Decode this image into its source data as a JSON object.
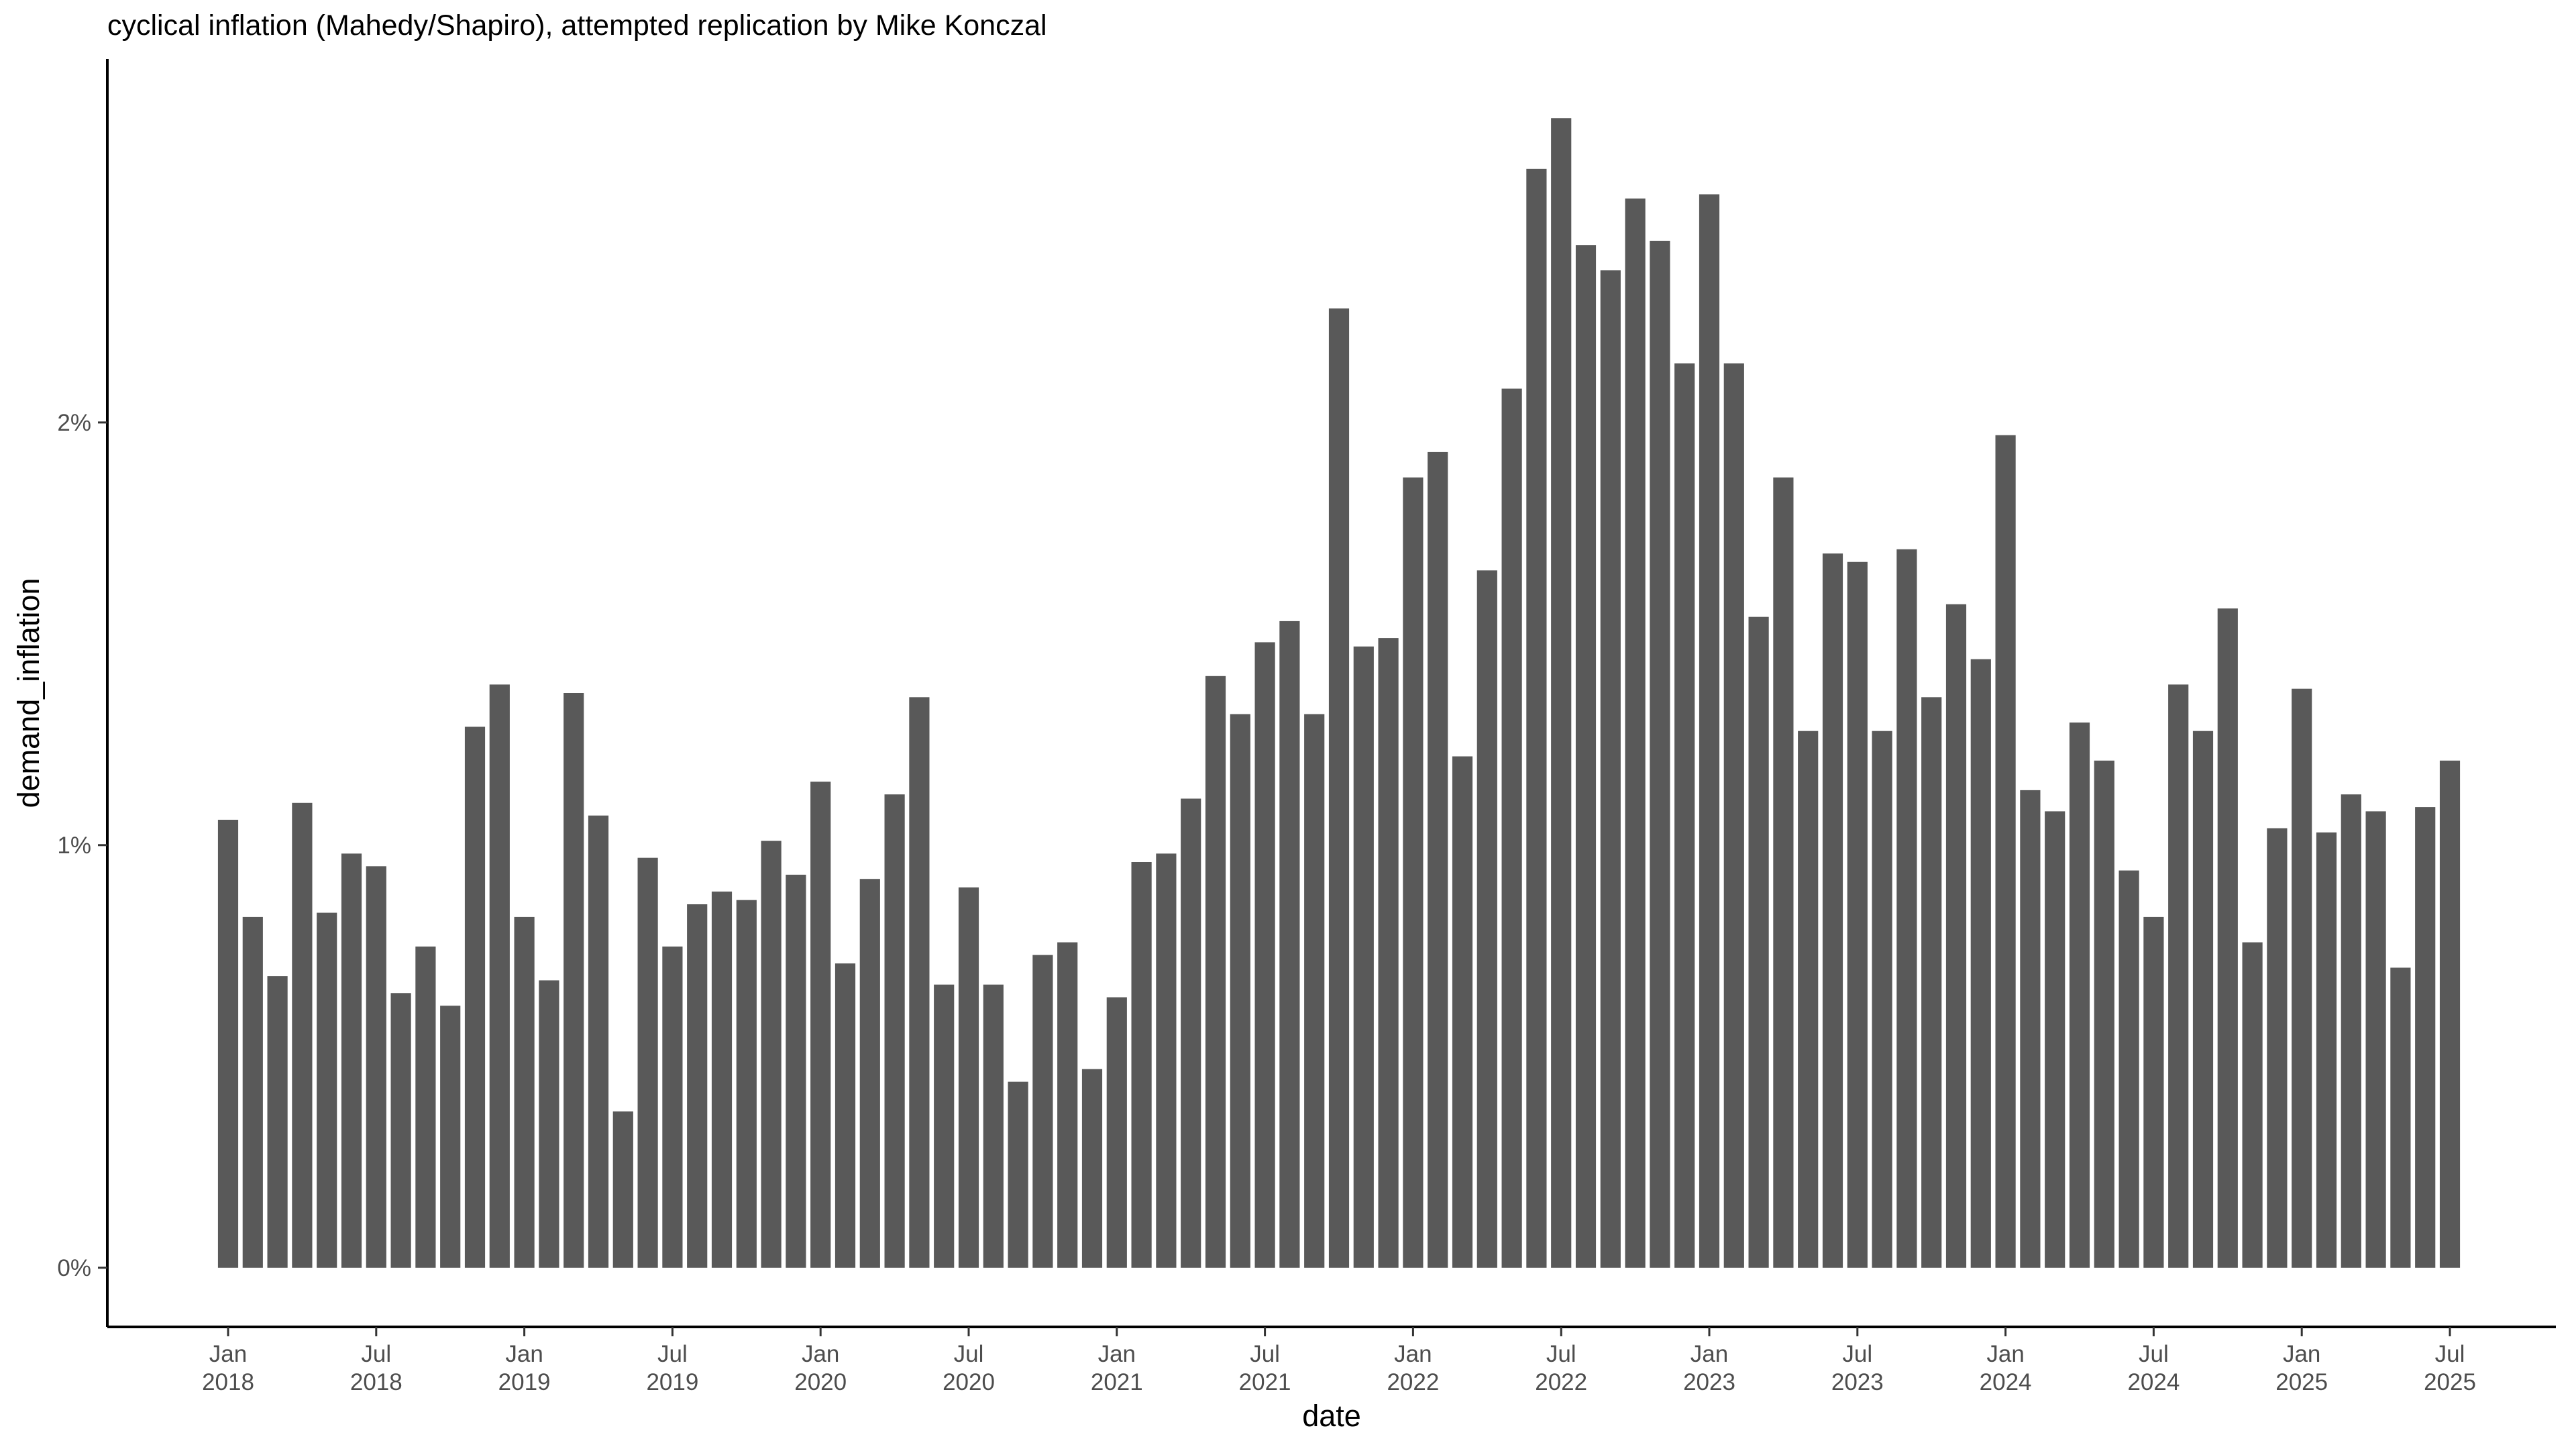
{
  "chart_data": {
    "type": "bar",
    "title": "cyclical inflation (Mahedy/Shapiro), attempted replication by Mike Konczal",
    "xlabel": "date",
    "ylabel": "demand_inflation",
    "bar_color": "#595959",
    "axis_color": "#000000",
    "tick_label_color": "#4d4d4d",
    "grid": false,
    "legend": "none",
    "ylim": [
      -0.14,
      2.86
    ],
    "y_ticks": [
      {
        "value": 0,
        "label": "0%"
      },
      {
        "value": 1,
        "label": "1%"
      },
      {
        "value": 2,
        "label": "2%"
      }
    ],
    "x_ticks": [
      {
        "date": "2018-01",
        "line1": "Jan",
        "line2": "2018"
      },
      {
        "date": "2018-07",
        "line1": "Jul",
        "line2": "2018"
      },
      {
        "date": "2019-01",
        "line1": "Jan",
        "line2": "2019"
      },
      {
        "date": "2019-07",
        "line1": "Jul",
        "line2": "2019"
      },
      {
        "date": "2020-01",
        "line1": "Jan",
        "line2": "2020"
      },
      {
        "date": "2020-07",
        "line1": "Jul",
        "line2": "2020"
      },
      {
        "date": "2021-01",
        "line1": "Jan",
        "line2": "2021"
      },
      {
        "date": "2021-07",
        "line1": "Jul",
        "line2": "2021"
      },
      {
        "date": "2022-01",
        "line1": "Jan",
        "line2": "2022"
      },
      {
        "date": "2022-07",
        "line1": "Jul",
        "line2": "2022"
      },
      {
        "date": "2023-01",
        "line1": "Jan",
        "line2": "2023"
      },
      {
        "date": "2023-07",
        "line1": "Jul",
        "line2": "2023"
      },
      {
        "date": "2024-01",
        "line1": "Jan",
        "line2": "2024"
      },
      {
        "date": "2024-07",
        "line1": "Jul",
        "line2": "2024"
      },
      {
        "date": "2025-01",
        "line1": "Jan",
        "line2": "2025"
      },
      {
        "date": "2025-07",
        "line1": "Jul",
        "line2": "2025"
      }
    ],
    "x": [
      "2018-01",
      "2018-02",
      "2018-03",
      "2018-04",
      "2018-05",
      "2018-06",
      "2018-07",
      "2018-08",
      "2018-09",
      "2018-10",
      "2018-11",
      "2018-12",
      "2019-01",
      "2019-02",
      "2019-03",
      "2019-04",
      "2019-05",
      "2019-06",
      "2019-07",
      "2019-08",
      "2019-09",
      "2019-10",
      "2019-11",
      "2019-12",
      "2020-01",
      "2020-02",
      "2020-03",
      "2020-04",
      "2020-05",
      "2020-06",
      "2020-07",
      "2020-08",
      "2020-09",
      "2020-10",
      "2020-11",
      "2020-12",
      "2021-01",
      "2021-02",
      "2021-03",
      "2021-04",
      "2021-05",
      "2021-06",
      "2021-07",
      "2021-08",
      "2021-09",
      "2021-10",
      "2021-11",
      "2021-12",
      "2022-01",
      "2022-02",
      "2022-03",
      "2022-04",
      "2022-05",
      "2022-06",
      "2022-07",
      "2022-08",
      "2022-09",
      "2022-10",
      "2022-11",
      "2022-12",
      "2023-01",
      "2023-02",
      "2023-03",
      "2023-04",
      "2023-05",
      "2023-06",
      "2023-07",
      "2023-08",
      "2023-09",
      "2023-10",
      "2023-11",
      "2023-12",
      "2024-01",
      "2024-02",
      "2024-03",
      "2024-04",
      "2024-05",
      "2024-06",
      "2024-07",
      "2024-08",
      "2024-09",
      "2024-10",
      "2024-11",
      "2024-12",
      "2025-01",
      "2025-02",
      "2025-03",
      "2025-04",
      "2025-05",
      "2025-06",
      "2025-07"
    ],
    "series": [
      {
        "values": [
          1.06,
          0.83,
          0.69,
          1.1,
          0.84,
          0.98,
          0.95,
          0.65,
          0.76,
          0.62,
          1.28,
          1.38,
          0.83,
          0.68,
          1.36,
          1.07,
          0.37,
          0.97,
          0.76,
          0.86,
          0.89,
          0.87,
          1.01,
          0.93,
          1.15,
          0.72,
          0.92,
          1.12,
          1.35,
          0.67,
          0.9,
          0.67,
          0.44,
          0.74,
          0.77,
          0.47,
          0.64,
          0.96,
          0.98,
          1.11,
          1.4,
          1.31,
          1.48,
          1.53,
          1.31,
          2.27,
          1.47,
          1.49,
          1.87,
          1.93,
          1.21,
          1.65,
          2.08,
          2.6,
          2.72,
          2.42,
          2.36,
          2.53,
          2.43,
          2.14,
          2.54,
          2.14,
          1.54,
          1.87,
          1.27,
          1.69,
          1.67,
          1.27,
          1.7,
          1.35,
          1.57,
          1.44,
          1.97,
          1.13,
          1.08,
          1.29,
          1.2,
          0.94,
          0.83,
          1.38,
          1.27,
          1.56,
          0.77,
          1.04,
          1.37,
          1.03,
          1.12,
          1.08,
          0.71,
          1.09,
          1.2
        ]
      }
    ]
  }
}
